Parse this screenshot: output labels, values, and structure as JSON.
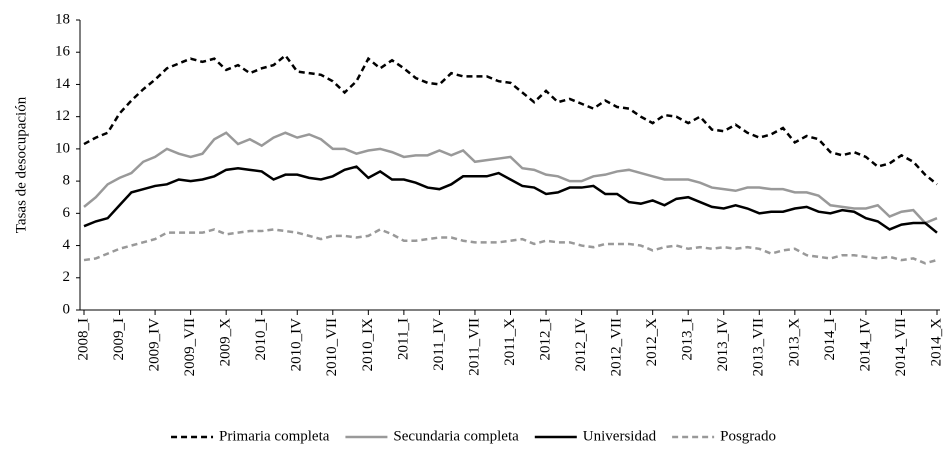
{
  "chart_data": {
    "type": "line",
    "y_label": "Tasas de desocupación",
    "categories": [
      "2008_I",
      null,
      null,
      "2009_I",
      null,
      null,
      "2009_IV",
      null,
      null,
      "2009_VII",
      null,
      null,
      "2009_X",
      null,
      null,
      "2010_I",
      null,
      null,
      "2010_IV",
      null,
      null,
      "2010_VII",
      null,
      null,
      "2010_IX",
      null,
      null,
      "2011_I",
      null,
      null,
      "2011_IV",
      null,
      null,
      "2011_VII",
      null,
      null,
      "2011_X",
      null,
      null,
      "2012_I",
      null,
      null,
      "2012_IV",
      null,
      null,
      "2012_VII",
      null,
      null,
      "2012_X",
      null,
      null,
      "2013_I",
      null,
      null,
      "2013_IV",
      null,
      null,
      "2013_VII",
      null,
      null,
      "2013_X",
      null,
      null,
      "2014_I",
      null,
      null,
      "2014_IV",
      null,
      null,
      "2014_VII",
      null,
      null,
      "2014_X"
    ],
    "series": [
      {
        "name": "Primaria completa",
        "color": "#000000",
        "style": "dashed",
        "values": [
          10.3,
          10.7,
          11.0,
          12.2,
          13.0,
          13.7,
          14.3,
          15.0,
          15.3,
          15.6,
          15.4,
          15.6,
          14.9,
          15.2,
          14.7,
          15.0,
          15.2,
          15.8,
          14.8,
          14.7,
          14.6,
          14.2,
          13.5,
          14.2,
          15.6,
          15.0,
          15.5,
          15.0,
          14.4,
          14.1,
          14.0,
          14.7,
          14.5,
          14.5,
          14.5,
          14.2,
          14.1,
          13.5,
          12.9,
          13.6,
          12.9,
          13.1,
          12.8,
          12.5,
          13.0,
          12.6,
          12.5,
          12.0,
          11.6,
          12.1,
          12.0,
          11.6,
          12.0,
          11.2,
          11.1,
          11.5,
          11.0,
          10.7,
          10.9,
          11.3,
          10.4,
          10.8,
          10.6,
          9.8,
          9.6,
          9.8,
          9.5,
          8.9,
          9.1,
          9.6,
          9.2,
          8.4,
          7.8
        ]
      },
      {
        "name": "Secundaria completa",
        "color": "#999999",
        "style": "solid",
        "values": [
          6.4,
          7.0,
          7.8,
          8.2,
          8.5,
          9.2,
          9.5,
          10.0,
          9.7,
          9.5,
          9.7,
          10.6,
          11.0,
          10.3,
          10.6,
          10.2,
          10.7,
          11.0,
          10.7,
          10.9,
          10.6,
          10.0,
          10.0,
          9.7,
          9.9,
          10.0,
          9.8,
          9.5,
          9.6,
          9.6,
          9.9,
          9.6,
          9.9,
          9.2,
          9.3,
          9.4,
          9.5,
          8.8,
          8.7,
          8.4,
          8.3,
          8.0,
          8.0,
          8.3,
          8.4,
          8.6,
          8.7,
          8.5,
          8.3,
          8.1,
          8.1,
          8.1,
          7.9,
          7.6,
          7.5,
          7.4,
          7.6,
          7.6,
          7.5,
          7.5,
          7.3,
          7.3,
          7.1,
          6.5,
          6.4,
          6.3,
          6.3,
          6.5,
          5.8,
          6.1,
          6.2,
          5.4,
          5.7
        ]
      },
      {
        "name": "Universidad",
        "color": "#000000",
        "style": "solid",
        "values": [
          5.2,
          5.5,
          5.7,
          6.5,
          7.3,
          7.5,
          7.7,
          7.8,
          8.1,
          8.0,
          8.1,
          8.3,
          8.7,
          8.8,
          8.7,
          8.6,
          8.1,
          8.4,
          8.4,
          8.2,
          8.1,
          8.3,
          8.7,
          8.9,
          8.2,
          8.6,
          8.1,
          8.1,
          7.9,
          7.6,
          7.5,
          7.8,
          8.3,
          8.3,
          8.3,
          8.5,
          8.1,
          7.7,
          7.6,
          7.2,
          7.3,
          7.6,
          7.6,
          7.7,
          7.2,
          7.2,
          6.7,
          6.6,
          6.8,
          6.5,
          6.9,
          7.0,
          6.7,
          6.4,
          6.3,
          6.5,
          6.3,
          6.0,
          6.1,
          6.1,
          6.3,
          6.4,
          6.1,
          6.0,
          6.2,
          6.1,
          5.7,
          5.5,
          5.0,
          5.3,
          5.4,
          5.4,
          4.8
        ]
      },
      {
        "name": "Posgrado",
        "color": "#999999",
        "style": "dashed",
        "values": [
          3.1,
          3.2,
          3.5,
          3.8,
          4.0,
          4.2,
          4.4,
          4.8,
          4.8,
          4.8,
          4.8,
          5.0,
          4.7,
          4.8,
          4.9,
          4.9,
          5.0,
          4.9,
          4.8,
          4.6,
          4.4,
          4.6,
          4.6,
          4.5,
          4.6,
          5.0,
          4.7,
          4.3,
          4.3,
          4.4,
          4.5,
          4.5,
          4.3,
          4.2,
          4.2,
          4.2,
          4.3,
          4.4,
          4.1,
          4.3,
          4.2,
          4.2,
          4.0,
          3.9,
          4.1,
          4.1,
          4.1,
          4.0,
          3.7,
          3.9,
          4.0,
          3.8,
          3.9,
          3.8,
          3.9,
          3.8,
          3.9,
          3.8,
          3.5,
          3.7,
          3.8,
          3.4,
          3.3,
          3.2,
          3.4,
          3.4,
          3.3,
          3.2,
          3.3,
          3.1,
          3.2,
          2.9,
          3.1
        ]
      }
    ],
    "ylim": [
      0,
      18
    ],
    "yticks": [
      0,
      2,
      4,
      6,
      8,
      10,
      12,
      14,
      16,
      18
    ],
    "grid": false,
    "legend": "bottom"
  }
}
